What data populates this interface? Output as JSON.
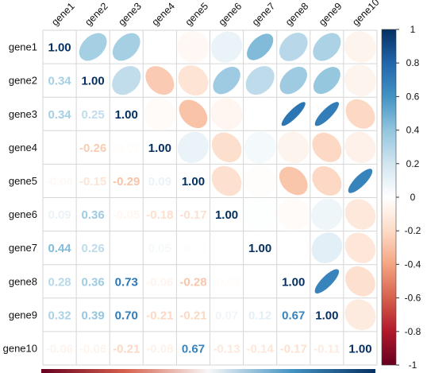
{
  "chart_data": {
    "type": "heatmap",
    "style": "mixed correlation plot: numbers in lower triangle, ellipses in upper triangle",
    "labels": [
      "gene1",
      "gene2",
      "gene3",
      "gene4",
      "gene5",
      "gene6",
      "gene7",
      "gene8",
      "gene9",
      "gene10"
    ],
    "matrix": [
      [
        1.0,
        0.34,
        0.34,
        0.0,
        -0.04,
        0.09,
        0.44,
        0.28,
        0.32,
        -0.06
      ],
      [
        0.34,
        1.0,
        0.25,
        -0.26,
        -0.15,
        0.36,
        0.26,
        0.36,
        0.39,
        -0.06
      ],
      [
        0.34,
        0.25,
        1.0,
        -0.02,
        -0.29,
        -0.05,
        0.0,
        0.73,
        0.7,
        -0.21
      ],
      [
        0.0,
        -0.26,
        -0.02,
        1.0,
        0.09,
        -0.18,
        0.05,
        -0.06,
        -0.21,
        -0.08
      ],
      [
        -0.04,
        -0.15,
        -0.29,
        0.09,
        1.0,
        -0.17,
        -0.01,
        -0.28,
        -0.21,
        0.67
      ],
      [
        0.09,
        0.36,
        -0.05,
        -0.18,
        -0.17,
        1.0,
        0.01,
        -0.02,
        0.07,
        -0.13
      ],
      [
        0.44,
        0.26,
        0.0,
        0.05,
        -0.01,
        0.01,
        1.0,
        0.0,
        0.12,
        -0.14
      ],
      [
        0.28,
        0.36,
        0.73,
        -0.06,
        -0.28,
        -0.02,
        0.0,
        1.0,
        0.67,
        -0.17
      ],
      [
        0.32,
        0.39,
        0.7,
        -0.21,
        -0.21,
        0.07,
        0.12,
        0.67,
        1.0,
        -0.11
      ],
      [
        -0.06,
        -0.06,
        -0.21,
        -0.08,
        0.67,
        -0.13,
        -0.14,
        -0.17,
        -0.11,
        1.0
      ]
    ],
    "colorbar": {
      "ticks": [
        "1",
        "0.8",
        "0.6",
        "0.4",
        "0.2",
        "0",
        "-0.2",
        "-0.4",
        "-0.6",
        "-0.8",
        "-1"
      ],
      "range": [
        -1,
        1
      ]
    },
    "colors": {
      "neg_strong": "#67001F",
      "neg_mid": "#D6604D",
      "neg_light": "#FDDBC7",
      "neutral": "#FFFFFF",
      "pos_light": "#D1E5F0",
      "pos_mid": "#4393C3",
      "pos_strong": "#053061",
      "grid": "#D6D6D6"
    }
  }
}
